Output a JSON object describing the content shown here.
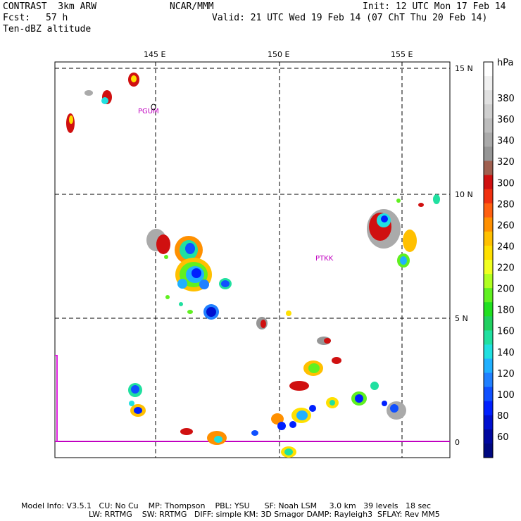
{
  "header": {
    "model": "CONTRAST  3km ARW",
    "org": "NCAR/MMM",
    "init": "Init: 12 UTC Mon 17 Feb 14",
    "fcst_label": "Fcst:",
    "fcst_value": "57 h",
    "valid": "Valid: 21 UTC Wed 19 Feb 14 (07 ChT Thu 20 Feb 14)",
    "field": "Ten-dBZ altitude"
  },
  "map": {
    "lon_labels": [
      "145 E",
      "150 E",
      "155 E"
    ],
    "lat_labels": [
      "15 N",
      "10 N",
      "5 N",
      "0"
    ],
    "stations": [
      "PGUM",
      "PTKK"
    ]
  },
  "colorbar": {
    "unit": "hPa",
    "labels": [
      "380",
      "360",
      "340",
      "320",
      "300",
      "280",
      "260",
      "240",
      "220",
      "200",
      "180",
      "160",
      "140",
      "120",
      "100",
      "80",
      "60"
    ],
    "colors": [
      "#ffffff",
      "#f0f0f0",
      "#e0e0e0",
      "#cfcfcf",
      "#bdbdbd",
      "#aaaaaa",
      "#969696",
      "#a06050",
      "#d01010",
      "#f03010",
      "#ff6010",
      "#ff9000",
      "#ffc000",
      "#ffe000",
      "#f0ff20",
      "#b0ff20",
      "#60f020",
      "#20e020",
      "#20d060",
      "#20e0a0",
      "#20e0e0",
      "#20b0ff",
      "#2080ff",
      "#1050ff",
      "#0020ff",
      "#0010d0",
      "#0008a0",
      "#000880"
    ]
  },
  "footer": {
    "line1": "Model Info: V3.5.1   CU: No Cu    MP: Thompson    PBL: YSU      SF: Noah LSM     3.0 km   39 levels   18 sec",
    "line2": "LW: RRTMG    SW: RRTMG   DIFF: simple KM: 3D Smagor DAMP: Rayleigh3  SFLAY: Rev MM5"
  }
}
